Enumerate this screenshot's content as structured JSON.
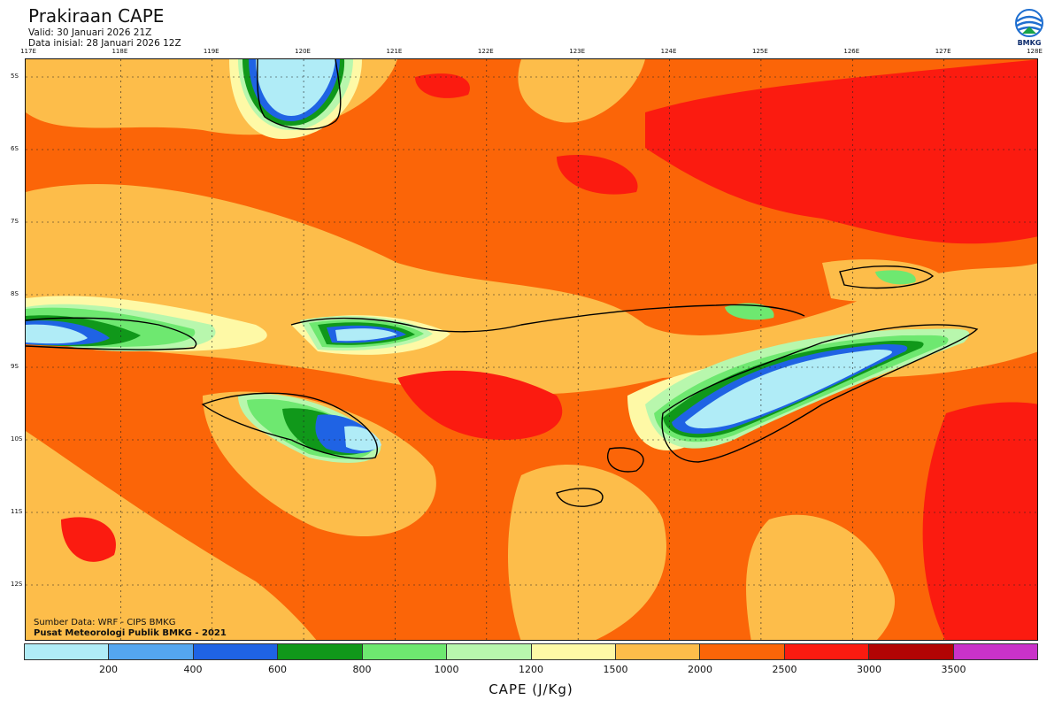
{
  "header": {
    "title": "Prakiraan CAPE",
    "valid": "Valid: 30 Januari 2026 21Z",
    "initial": "Data inisial: 28 Januari 2026 12Z"
  },
  "logo": {
    "name": "bmkg-logo",
    "text": "BMKG"
  },
  "map": {
    "longitudes": [
      "117E",
      "118E",
      "119E",
      "120E",
      "121E",
      "122E",
      "123E",
      "124E",
      "125E",
      "126E",
      "127E",
      "128E"
    ],
    "latitudes": [
      "5S",
      "6S",
      "7S",
      "8S",
      "9S",
      "10S",
      "11S",
      "12S"
    ],
    "background_color": "#fb6508"
  },
  "source": {
    "line1": "Sumber Data: WRF - CIPS BMKG",
    "line2": "Pusat Meteorologi Publik BMKG - 2021"
  },
  "colorbar": {
    "colors": [
      "#b0ecf7",
      "#54a6f0",
      "#1f63e4",
      "#10981a",
      "#6ee870",
      "#b8f7ad",
      "#fef9a6",
      "#fdbd4a",
      "#fb6508",
      "#fb1b10",
      "#b20404",
      "#c932c9"
    ],
    "labels": [
      "200",
      "400",
      "600",
      "800",
      "1000",
      "1200",
      "1500",
      "2000",
      "2500",
      "3000",
      "3500"
    ],
    "title": "CAPE (J/Kg)"
  }
}
